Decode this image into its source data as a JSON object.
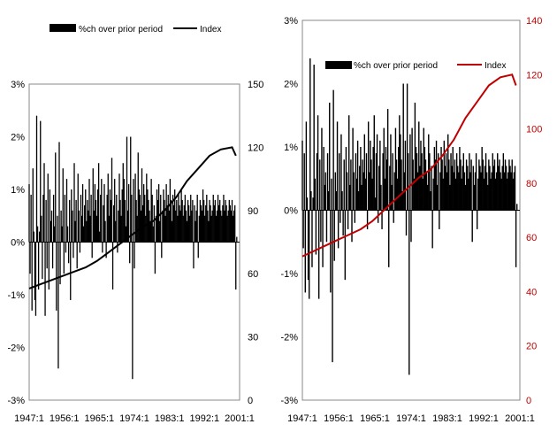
{
  "chart_data": [
    {
      "type": "bar+line",
      "left_axis": {
        "ticks": [
          "3%",
          "2%",
          "1%",
          "0%",
          "-1%",
          "-2%",
          "-3%"
        ],
        "ylim": [
          -3,
          3
        ]
      },
      "right_axis": {
        "ticks": [
          "150",
          "120",
          "90",
          "60",
          "30",
          "0"
        ],
        "ylim": [
          0,
          150
        ]
      },
      "x_ticks": [
        "1947:1",
        "1956:1",
        "1965:1",
        "1974:1",
        "1983:1",
        "1992:1",
        "2001:1"
      ],
      "x_range": [
        1947.0,
        2003.0
      ],
      "legend": {
        "position": "top",
        "entries": [
          "%ch over prior period",
          "Index"
        ]
      },
      "series": [
        {
          "name": "%ch over prior period",
          "kind": "bar",
          "color": "#000000",
          "x": [
            1947.0,
            1947.25,
            1947.5,
            1947.75,
            1948.0,
            1948.25,
            1948.5,
            1948.75,
            1949.0,
            1949.25,
            1949.5,
            1949.75,
            1950.0,
            1950.25,
            1950.5,
            1950.75,
            1951.0,
            1951.25,
            1951.5,
            1951.75,
            1952.0,
            1952.25,
            1952.5,
            1952.75,
            1953.0,
            1953.25,
            1953.5,
            1953.75,
            1954.0,
            1954.25,
            1954.5,
            1954.75,
            1955.0,
            1955.25,
            1955.5,
            1955.75,
            1956.0,
            1956.25,
            1956.5,
            1956.75,
            1957.0,
            1957.25,
            1957.5,
            1957.75,
            1958.0,
            1958.25,
            1958.5,
            1958.75,
            1959.0,
            1959.25,
            1959.5,
            1959.75,
            1960.0,
            1960.25,
            1960.5,
            1960.75,
            1961.0,
            1961.25,
            1961.5,
            1961.75,
            1962.0,
            1962.25,
            1962.5,
            1962.75,
            1963.0,
            1963.25,
            1963.5,
            1963.75,
            1964.0,
            1964.25,
            1964.5,
            1964.75,
            1965.0,
            1965.25,
            1965.5,
            1965.75,
            1966.0,
            1966.25,
            1966.5,
            1966.75,
            1967.0,
            1967.25,
            1967.5,
            1967.75,
            1968.0,
            1968.25,
            1968.5,
            1968.75,
            1969.0,
            1969.25,
            1969.5,
            1969.75,
            1970.0,
            1970.25,
            1970.5,
            1970.75,
            1971.0,
            1971.25,
            1971.5,
            1971.75,
            1972.0,
            1972.25,
            1972.5,
            1972.75,
            1973.0,
            1973.25,
            1973.5,
            1973.75,
            1974.0,
            1974.25,
            1974.5,
            1974.75,
            1975.0,
            1975.25,
            1975.5,
            1975.75,
            1976.0,
            1976.25,
            1976.5,
            1976.75,
            1977.0,
            1977.25,
            1977.5,
            1977.75,
            1978.0,
            1978.25,
            1978.5,
            1978.75,
            1979.0,
            1979.25,
            1979.5,
            1979.75,
            1980.0,
            1980.25,
            1980.5,
            1980.75,
            1981.0,
            1981.25,
            1981.5,
            1981.75,
            1982.0,
            1982.25,
            1982.5,
            1982.75,
            1983.0,
            1983.25,
            1983.5,
            1983.75,
            1984.0,
            1984.25,
            1984.5,
            1984.75,
            1985.0,
            1985.25,
            1985.5,
            1985.75,
            1986.0,
            1986.25,
            1986.5,
            1986.75,
            1987.0,
            1987.25,
            1987.5,
            1987.75,
            1988.0,
            1988.25,
            1988.5,
            1988.75,
            1989.0,
            1989.25,
            1989.5,
            1989.75,
            1990.0,
            1990.25,
            1990.5,
            1990.75,
            1991.0,
            1991.25,
            1991.5,
            1991.75,
            1992.0,
            1992.25,
            1992.5,
            1992.75,
            1993.0,
            1993.25,
            1993.5,
            1993.75,
            1994.0,
            1994.25,
            1994.5,
            1994.75,
            1995.0,
            1995.25,
            1995.5,
            1995.75,
            1996.0,
            1996.25,
            1996.5,
            1996.75,
            1997.0,
            1997.25,
            1997.5,
            1997.75,
            1998.0,
            1998.25,
            1998.5,
            1998.75,
            1999.0,
            1999.25,
            1999.5,
            1999.75,
            2000.0,
            2000.25,
            2000.5,
            2000.75,
            2001.0,
            2001.25,
            2001.5,
            2001.75,
            2002.0,
            2002.25
          ],
          "values": [
            1.1,
            -0.6,
            0.9,
            -1.3,
            1.4,
            0.2,
            -1.1,
            -1.4,
            2.4,
            0.3,
            -0.9,
            0.2,
            2.3,
            0.5,
            -0.7,
            0.9,
            1.5,
            -1.4,
            0.8,
            -0.5,
            1.3,
            -0.9,
            1.0,
            0.4,
            0.6,
            -0.5,
            0.9,
            0.3,
            1.7,
            -1.3,
            0.5,
            -2.4,
            1.9,
            -0.8,
            0.6,
            0.3,
            1.4,
            -0.6,
            0.9,
            -0.2,
            1.2,
            0.3,
            -0.4,
            0.8,
            -1.1,
            1.0,
            0.6,
            -0.3,
            1.5,
            0.4,
            0.8,
            -0.5,
            1.3,
            0.6,
            -0.2,
            0.9,
            0.5,
            1.1,
            0.3,
            0.7,
            1.0,
            0.4,
            0.8,
            0.6,
            1.2,
            0.5,
            0.9,
            -0.3,
            1.4,
            0.6,
            1.1,
            0.8,
            0.5,
            1.0,
            1.5,
            0.2,
            0.9,
            1.2,
            -0.2,
            0.7,
            1.1,
            0.4,
            -0.3,
            0.9,
            1.3,
            0.5,
            1.0,
            0.8,
            1.6,
            -0.9,
            0.7,
            1.2,
            0.4,
            0.9,
            -0.2,
            0.6,
            1.3,
            0.8,
            0.5,
            1.0,
            1.5,
            1.2,
            0.8,
            0.3,
            2.0,
            0.6,
            1.1,
            -0.4,
            2.0,
            0.9,
            -2.6,
            1.2,
            -0.5,
            1.3,
            0.8,
            0.5,
            1.7,
            1.0,
            0.9,
            0.6,
            1.4,
            0.7,
            1.1,
            0.9,
            0.5,
            1.3,
            1.0,
            0.8,
            0.6,
            0.4,
            1.2,
            0.9,
            0.3,
            0.7,
            -0.6,
            0.5,
            1.0,
            0.8,
            1.1,
            0.4,
            0.9,
            -0.3,
            0.6,
            1.0,
            0.8,
            0.5,
            1.1,
            0.7,
            0.9,
            0.6,
            1.2,
            0.8,
            0.4,
            0.9,
            0.7,
            1.0,
            0.6,
            0.8,
            0.5,
            0.9,
            0.7,
            0.6,
            1.0,
            0.8,
            0.5,
            0.7,
            0.9,
            0.6,
            0.4,
            0.8,
            0.7,
            0.5,
            0.9,
            0.6,
            0.8,
            -0.5,
            0.7,
            0.4,
            0.6,
            0.9,
            -0.3,
            0.5,
            0.8,
            0.7,
            0.6,
            1.0,
            0.8,
            0.5,
            0.7,
            0.9,
            0.6,
            0.4,
            0.8,
            0.7,
            0.5,
            0.6,
            0.9,
            0.7,
            0.8,
            0.5,
            0.6,
            0.9,
            0.7,
            0.8,
            0.6,
            0.5,
            0.7,
            0.9,
            0.6,
            0.8,
            0.7,
            0.5,
            0.6,
            0.8,
            0.7,
            0.6,
            0.8,
            0.5,
            0.6,
            0.7,
            -0.9,
            0.1
          ],
          "axis": "left"
        },
        {
          "name": "Index",
          "kind": "line",
          "color": "#000000",
          "x": [
            1947.0,
            1950.0,
            1953.0,
            1956.0,
            1959.0,
            1962.0,
            1965.0,
            1968.0,
            1971.0,
            1974.0,
            1977.0,
            1980.0,
            1983.0,
            1986.0,
            1989.0,
            1992.0,
            1995.0,
            1998.0,
            2001.0,
            2002.0
          ],
          "values": [
            53,
            55,
            57,
            59,
            61,
            63,
            66,
            70,
            74,
            78,
            82,
            85,
            90,
            96,
            104,
            110,
            116,
            119,
            120,
            116
          ],
          "axis": "right"
        }
      ]
    },
    {
      "type": "bar+line",
      "left_axis": {
        "ticks": [
          "3%",
          "2%",
          "1%",
          "0%",
          "-1%",
          "-2%",
          "-3%"
        ],
        "ylim": [
          -3,
          3
        ]
      },
      "right_axis": {
        "ticks": [
          "140",
          "120",
          "100",
          "80",
          "60",
          "40",
          "20",
          "0"
        ],
        "ylim": [
          0,
          140
        ],
        "color": "#c00000"
      },
      "x_ticks": [
        "1947:1",
        "1956:1",
        "1965:1",
        "1974:1",
        "1983:1",
        "1992:1",
        "2001:1"
      ],
      "x_range": [
        1947.0,
        2003.0
      ],
      "legend": {
        "position": "top",
        "entries": [
          "%ch over prior period",
          "Index"
        ]
      },
      "series": [
        {
          "name": "%ch over prior period",
          "kind": "bar",
          "color": "#000000",
          "same_as_chart": 0,
          "axis": "left"
        },
        {
          "name": "Index",
          "kind": "line",
          "color": "#c00000",
          "x": [
            1947.0,
            1950.0,
            1953.0,
            1956.0,
            1959.0,
            1962.0,
            1965.0,
            1968.0,
            1971.0,
            1974.0,
            1977.0,
            1980.0,
            1983.0,
            1986.0,
            1989.0,
            1992.0,
            1995.0,
            1998.0,
            2001.0,
            2002.0
          ],
          "values": [
            53,
            55,
            57,
            59,
            61,
            63,
            66,
            70,
            74,
            78,
            82,
            85,
            90,
            96,
            104,
            110,
            116,
            119,
            120,
            116
          ],
          "axis": "right"
        }
      ]
    }
  ]
}
